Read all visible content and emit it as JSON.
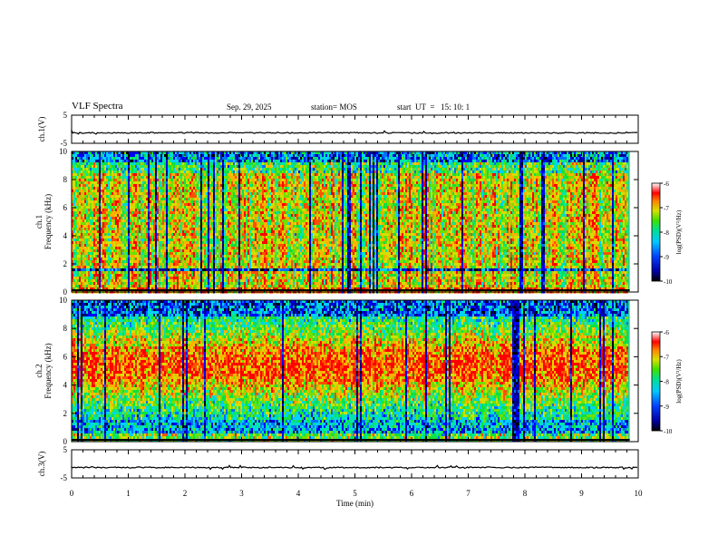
{
  "header": {
    "title": "VLF Spectra",
    "date": "Sep. 29, 2025",
    "station": "station= MOS",
    "start": "start  UT  =   15: 10: 1"
  },
  "chart_data": [
    {
      "type": "line",
      "name": "ch1-waveform",
      "ylabel": "ch.1(V)",
      "ylim": [
        -5,
        5
      ],
      "yticks": [
        "5",
        "-5"
      ],
      "xlim": [
        0,
        10
      ],
      "baseline": 0
    },
    {
      "type": "heatmap",
      "name": "ch1-spectrogram",
      "ylabel_line1": "ch.1",
      "ylabel_line2": "Frequency (kHz)",
      "ylim": [
        0,
        10
      ],
      "yticks": [
        "0",
        "2",
        "4",
        "6",
        "8",
        "10"
      ],
      "xlim": [
        0,
        9.85
      ],
      "colorbar": {
        "label": "log(PSD)(V²/Hz)",
        "range": [
          -10,
          -6
        ],
        "ticks": [
          "-6",
          "-7",
          "-8",
          "-9",
          "-10"
        ]
      }
    },
    {
      "type": "heatmap",
      "name": "ch2-spectrogram",
      "ylabel_line1": "ch.2",
      "ylabel_line2": "Frequency (kHz)",
      "ylim": [
        0,
        10
      ],
      "yticks": [
        "0",
        "2",
        "4",
        "6",
        "8",
        "10"
      ],
      "xlim": [
        0,
        9.85
      ],
      "colorbar": {
        "label": "log(PSD)(V²/Hz)",
        "range": [
          -10,
          -6
        ],
        "ticks": [
          "-6",
          "-7",
          "-8",
          "-9",
          "-10"
        ]
      }
    },
    {
      "type": "line",
      "name": "ch3-waveform",
      "ylabel": "ch.3(V)",
      "ylim": [
        -5,
        5
      ],
      "yticks": [
        "5",
        "-5"
      ],
      "xlim": [
        0,
        10
      ],
      "baseline": 0
    }
  ],
  "xaxis": {
    "label": "Time  (min)",
    "range": [
      0,
      10
    ],
    "ticks": [
      "0",
      "1",
      "2",
      "3",
      "4",
      "5",
      "6",
      "7",
      "8",
      "9",
      "10"
    ]
  }
}
